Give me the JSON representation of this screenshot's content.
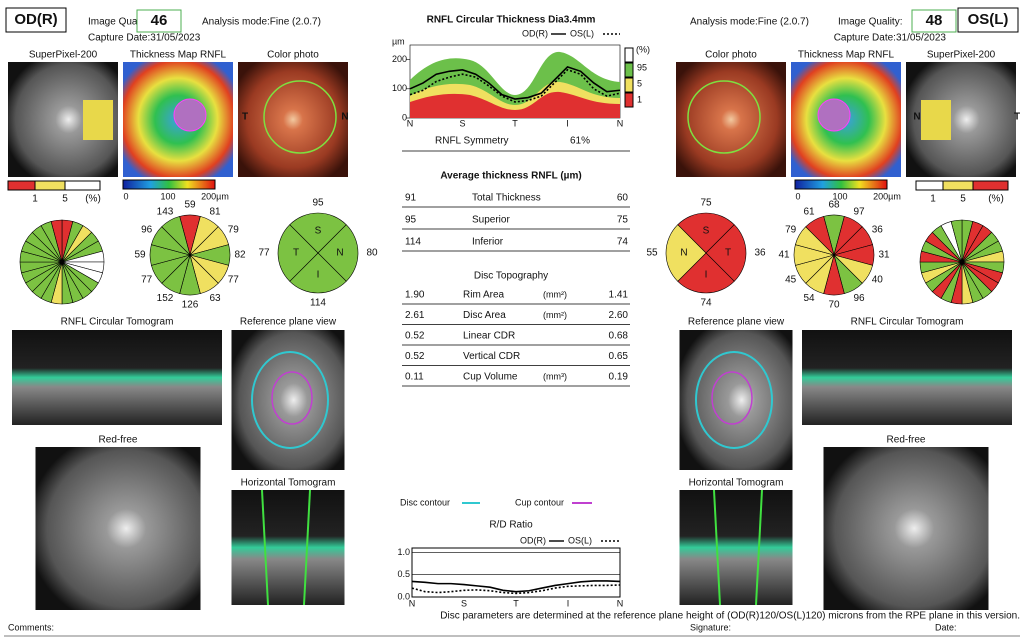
{
  "od": {
    "label": "OD(R)",
    "image_quality_label": "Image Quality:",
    "image_quality": "46",
    "analysis_mode": "Analysis mode:Fine (2.0.7)",
    "capture_date": "Capture Date:31/05/2023",
    "superpixel_title": "SuperPixel-200",
    "thickness_map_title": "Thickness Map RNFL",
    "color_photo_title": "Color photo",
    "photo_letters": [
      "T",
      "N"
    ],
    "superpixel_legend": [
      "1",
      "5",
      "(%)"
    ],
    "thickness_legend": [
      "0",
      "100",
      "200µm"
    ],
    "clock_values": [
      "59",
      "81",
      "79",
      "82",
      "77",
      "63",
      "126",
      "152",
      "77",
      "59",
      "96",
      "143"
    ],
    "quadrants": [
      {
        "letter": "S",
        "value": "95"
      },
      {
        "letter": "N",
        "value": "80"
      },
      {
        "letter": "I",
        "value": "114"
      },
      {
        "letter": "T",
        "value": "77"
      }
    ],
    "tomogram_title": "RNFL Circular Tomogram",
    "reference_title": "Reference plane view",
    "red_free_title": "Red-free",
    "horizontal_title": "Horizontal Tomogram"
  },
  "os": {
    "label": "OS(L)",
    "image_quality_label": "Image Quality:",
    "image_quality": "48",
    "analysis_mode": "Analysis mode:Fine (2.0.7)",
    "capture_date": "Capture Date:31/05/2023",
    "superpixel_title": "SuperPixel-200",
    "thickness_map_title": "Thickness Map RNFL",
    "color_photo_title": "Color photo",
    "photo_letters": [
      "N",
      "T"
    ],
    "superpixel_legend": [
      "1",
      "5",
      "(%)"
    ],
    "thickness_legend": [
      "0",
      "100",
      "200µm"
    ],
    "clock_values": [
      "68",
      "97",
      "36",
      "31",
      "40",
      "96",
      "70",
      "54",
      "45",
      "41",
      "79",
      "61"
    ],
    "quadrants": [
      {
        "letter": "S",
        "value": "75"
      },
      {
        "letter": "T",
        "value": "36"
      },
      {
        "letter": "I",
        "value": "74"
      },
      {
        "letter": "N",
        "value": "55"
      }
    ],
    "tomogram_title": "RNFL Circular Tomogram",
    "reference_title": "Reference plane view",
    "red_free_title": "Red-free",
    "horizontal_title": "Horizontal Tomogram"
  },
  "rnfl_chart": {
    "type": "line",
    "title": "RNFL Circular Thickness Dia3.4mm",
    "y_unit": "µm",
    "categories": [
      "N",
      null,
      null,
      null,
      "S",
      null,
      null,
      null,
      "T",
      null,
      null,
      null,
      "I",
      null,
      null,
      null,
      "N"
    ],
    "series": [
      {
        "name": "OD(R)",
        "color": "#000000",
        "dash": false,
        "values": [
          100,
          120,
          150,
          160,
          165,
          150,
          120,
          80,
          65,
          70,
          85,
          130,
          175,
          160,
          120,
          90,
          95
        ]
      },
      {
        "name": "OS(L)",
        "color": "#000000",
        "dash": true,
        "values": [
          80,
          95,
          125,
          140,
          150,
          140,
          110,
          75,
          55,
          60,
          75,
          120,
          165,
          150,
          100,
          75,
          85
        ]
      }
    ],
    "ylim": [
      0,
      250
    ],
    "yticks": [
      0,
      100,
      200
    ],
    "percentile_legend": [
      "(%)",
      "95",
      "5",
      "1"
    ]
  },
  "symmetry": {
    "label": "RNFL Symmetry",
    "value": "61%"
  },
  "average_thickness": {
    "title": "Average thickness RNFL (µm)",
    "rows": [
      [
        "91",
        "Total Thickness",
        "60"
      ],
      [
        "95",
        "Superior",
        "75"
      ],
      [
        "114",
        "Inferior",
        "74"
      ]
    ]
  },
  "disc_topography": {
    "title": "Disc Topography",
    "rows": [
      [
        "1.90",
        "Rim Area",
        "(mm²)",
        "1.41"
      ],
      [
        "2.61",
        "Disc Area",
        "(mm²)",
        "2.60"
      ],
      [
        "0.52",
        "Linear CDR",
        "",
        "0.68"
      ],
      [
        "0.52",
        "Vertical CDR",
        "",
        "0.65"
      ],
      [
        "0.11",
        "Cup Volume",
        "(mm³)",
        "0.19"
      ]
    ]
  },
  "contour_legend": {
    "disc": "Disc contour",
    "cup": "Cup contour"
  },
  "rd_chart": {
    "type": "line",
    "title": "R/D Ratio",
    "categories": [
      "N",
      null,
      null,
      null,
      "S",
      null,
      null,
      null,
      "T",
      null,
      null,
      null,
      "I",
      null,
      null,
      null,
      "N"
    ],
    "series": [
      {
        "name": "OD(R)",
        "color": "#000000",
        "dash": false,
        "values": [
          0.35,
          0.33,
          0.3,
          0.3,
          0.28,
          0.25,
          0.22,
          0.15,
          0.12,
          0.14,
          0.2,
          0.26,
          0.3,
          0.34,
          0.36,
          0.36,
          0.35
        ]
      },
      {
        "name": "OS(L)",
        "color": "#000000",
        "dash": true,
        "values": [
          0.2,
          0.12,
          0.1,
          0.12,
          0.15,
          0.16,
          0.14,
          0.1,
          0.08,
          0.1,
          0.14,
          0.2,
          0.24,
          0.25,
          0.26,
          0.26,
          0.27
        ]
      }
    ],
    "ylim": [
      0,
      1.1
    ],
    "yticks": [
      {
        "value": 0,
        "label": "0.0"
      },
      {
        "value": 0.5,
        "label": "0.5"
      },
      {
        "value": 1,
        "label": "1.0"
      }
    ]
  },
  "note": "Disc parameters are determined at the reference plane height of (OD(R)120/OS(L)120) microns from the RPE plane in this version.",
  "footer": {
    "comments": "Comments:",
    "signature": "Signature:",
    "date": "Date:"
  }
}
